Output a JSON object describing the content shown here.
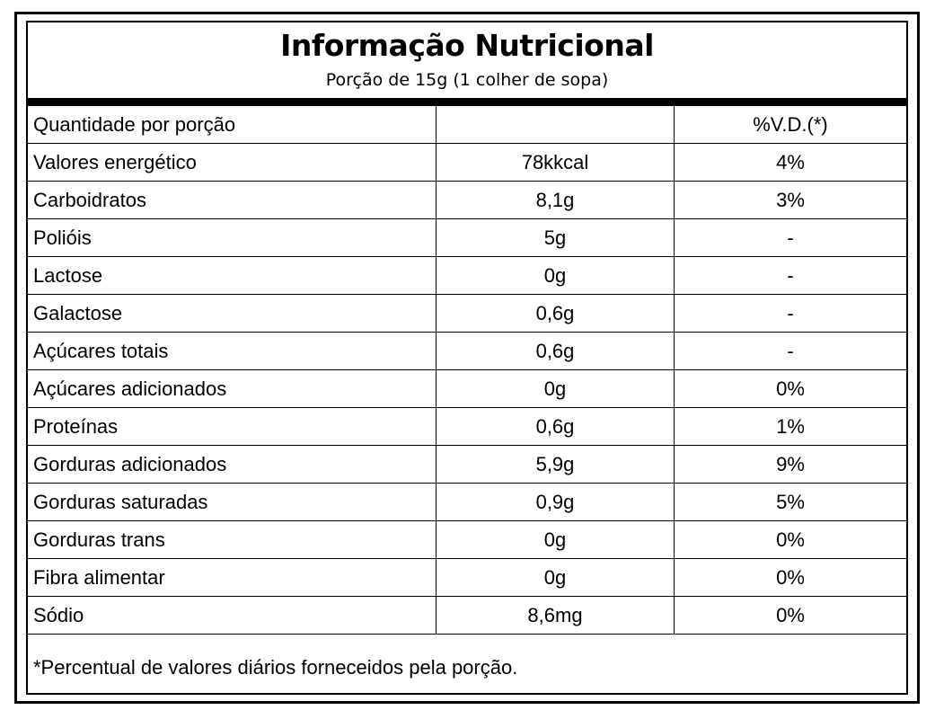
{
  "title": "Informação Nutricional",
  "subtitle": "Porção de 15g (1 colher de sopa)",
  "header_row": {
    "label": "Quantidade por porção",
    "amount": "",
    "dv": "%V.D.(*)"
  },
  "rows": [
    {
      "label": "Valores energético",
      "amount": "78kkcal",
      "dv": "4%"
    },
    {
      "label": "Carboidratos",
      "amount": "8,1g",
      "dv": "3%"
    },
    {
      "label": "Polióis",
      "amount": "5g",
      "dv": "-"
    },
    {
      "label": "Lactose",
      "amount": "0g",
      "dv": "-"
    },
    {
      "label": "Galactose",
      "amount": "0,6g",
      "dv": "-"
    },
    {
      "label": "Açúcares totais",
      "amount": "0,6g",
      "dv": "-"
    },
    {
      "label": "Açúcares adicionados",
      "amount": "0g",
      "dv": "0%"
    },
    {
      "label": "Proteínas",
      "amount": "0,6g",
      "dv": "1%"
    },
    {
      "label": "Gorduras adicionados",
      "amount": "5,9g",
      "dv": "9%"
    },
    {
      "label": "Gorduras saturadas",
      "amount": "0,9g",
      "dv": "5%"
    },
    {
      "label": "Gorduras trans",
      "amount": "0g",
      "dv": "0%"
    },
    {
      "label": "Fibra alimentar",
      "amount": "0g",
      "dv": "0%"
    },
    {
      "label": "Sódio",
      "amount": "8,6mg",
      "dv": "0%"
    }
  ],
  "footnote": "*Percentual de valores diários forneceidos pela porção."
}
